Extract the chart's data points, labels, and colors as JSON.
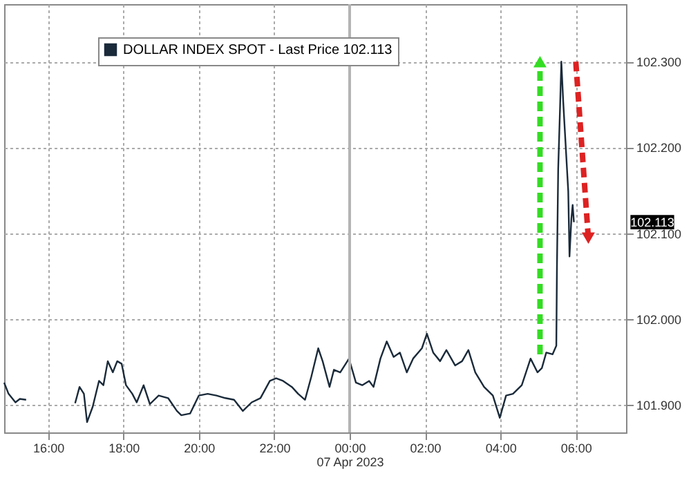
{
  "chart_data": {
    "type": "line",
    "xlabel": "07 Apr 2023",
    "x": [
      "2023-04-06T14:50",
      "2023-04-06T14:57",
      "2023-04-06T15:08",
      "2023-04-06T15:15",
      "2023-04-06T15:25",
      "2023-04-06T16:00",
      "2023-04-06T16:43",
      "2023-04-06T16:50",
      "2023-04-06T16:57",
      "2023-04-06T17:02",
      "2023-04-06T17:11",
      "2023-04-06T17:21",
      "2023-04-06T17:28",
      "2023-04-06T17:35",
      "2023-04-06T17:43",
      "2023-04-06T17:50",
      "2023-04-06T17:57",
      "2023-04-06T18:04",
      "2023-04-06T18:14",
      "2023-04-06T18:21",
      "2023-04-06T18:32",
      "2023-04-06T18:42",
      "2023-04-06T18:56",
      "2023-04-06T19:11",
      "2023-04-06T19:25",
      "2023-04-06T19:32",
      "2023-04-06T19:46",
      "2023-04-06T20:00",
      "2023-04-06T20:14",
      "2023-04-06T20:28",
      "2023-04-06T20:42",
      "2023-04-06T20:56",
      "2023-04-06T21:10",
      "2023-04-06T21:24",
      "2023-04-06T21:38",
      "2023-04-06T21:53",
      "2023-04-06T22:03",
      "2023-04-06T22:14",
      "2023-04-06T22:28",
      "2023-04-06T22:38",
      "2023-04-06T22:49",
      "2023-04-06T22:59",
      "2023-04-06T23:10",
      "2023-04-06T23:17",
      "2023-04-06T23:28",
      "2023-04-06T23:35",
      "2023-04-06T23:45",
      "2023-04-06T23:59",
      "2023-04-07T00:10",
      "2023-04-07T00:20",
      "2023-04-07T00:31",
      "2023-04-07T00:38",
      "2023-04-07T00:49",
      "2023-04-07T00:59",
      "2023-04-07T01:10",
      "2023-04-07T01:20",
      "2023-04-07T01:31",
      "2023-04-07T01:41",
      "2023-04-07T01:55",
      "2023-04-07T02:03",
      "2023-04-07T02:13",
      "2023-04-07T02:24",
      "2023-04-07T02:34",
      "2023-04-07T02:48",
      "2023-04-07T02:59",
      "2023-04-07T03:09",
      "2023-04-07T03:20",
      "2023-04-07T03:34",
      "2023-04-07T03:48",
      "2023-04-07T03:59",
      "2023-04-07T04:09",
      "2023-04-07T04:20",
      "2023-04-07T04:34",
      "2023-04-07T04:48",
      "2023-04-07T04:59",
      "2023-04-07T05:06",
      "2023-04-07T05:13",
      "2023-04-07T05:23",
      "2023-04-07T05:29",
      "2023-04-07T05:30",
      "2023-04-07T05:32",
      "2023-04-07T05:35",
      "2023-04-07T05:37",
      "2023-04-07T05:40",
      "2023-04-07T05:44",
      "2023-04-07T05:48",
      "2023-04-07T05:50",
      "2023-04-07T05:53",
      "2023-04-07T05:55",
      "2023-04-07T05:57"
    ],
    "series": [
      {
        "name": "DOLLAR INDEX SPOT - Last Price 102.113",
        "color": "#1a2a3a",
        "values": [
          101.926,
          101.913,
          101.903,
          101.907,
          101.906,
          null,
          101.902,
          101.921,
          101.913,
          101.88,
          101.898,
          101.928,
          101.923,
          101.951,
          101.938,
          101.951,
          101.948,
          101.923,
          101.913,
          101.903,
          101.923,
          101.901,
          101.911,
          101.908,
          101.893,
          101.888,
          101.89,
          101.911,
          101.913,
          101.911,
          101.908,
          101.906,
          101.893,
          101.903,
          101.908,
          101.928,
          101.931,
          101.928,
          101.921,
          101.913,
          101.906,
          101.933,
          101.966,
          101.951,
          101.921,
          101.941,
          101.938,
          101.954,
          101.926,
          101.923,
          101.928,
          101.921,
          101.954,
          101.974,
          101.956,
          101.961,
          101.938,
          101.954,
          101.966,
          101.983,
          101.961,
          101.951,
          101.964,
          101.946,
          101.951,
          101.964,
          101.938,
          101.921,
          101.911,
          101.885,
          101.911,
          101.913,
          101.923,
          101.954,
          101.938,
          101.943,
          101.961,
          101.959,
          101.969,
          102.06,
          102.175,
          102.248,
          102.3,
          102.253,
          102.201,
          102.149,
          102.073,
          102.117,
          102.133,
          102.113
        ]
      }
    ],
    "xlim": [
      "2023-04-06T14:50",
      "2023-04-07T07:20"
    ],
    "xticks": [
      {
        "value": "2023-04-06T16:00",
        "label": "16:00"
      },
      {
        "value": "2023-04-06T18:00",
        "label": "18:00"
      },
      {
        "value": "2023-04-06T20:00",
        "label": "20:00"
      },
      {
        "value": "2023-04-06T22:00",
        "label": "22:00"
      },
      {
        "value": "2023-04-07T00:00",
        "label": "00:00"
      },
      {
        "value": "2023-04-07T02:00",
        "label": "02:00"
      },
      {
        "value": "2023-04-07T04:00",
        "label": "04:00"
      },
      {
        "value": "2023-04-07T06:00",
        "label": "06:00"
      }
    ],
    "ylim": [
      101.868,
      102.367
    ],
    "yticks": [
      {
        "value": 101.9,
        "label": "101.900"
      },
      {
        "value": 102.0,
        "label": "102.000"
      },
      {
        "value": 102.1,
        "label": "102.100"
      },
      {
        "value": 102.2,
        "label": "102.200"
      },
      {
        "value": 102.3,
        "label": "102.300"
      }
    ],
    "ref_lines": [
      {
        "axis": "x",
        "value": "2023-04-07T00:00",
        "color": "#b4b4b4"
      }
    ],
    "annotations": [
      {
        "text": "102.113",
        "y": 102.113
      }
    ],
    "grid": true,
    "legend": "top left",
    "line_style": "solid",
    "marker": "none"
  }
}
